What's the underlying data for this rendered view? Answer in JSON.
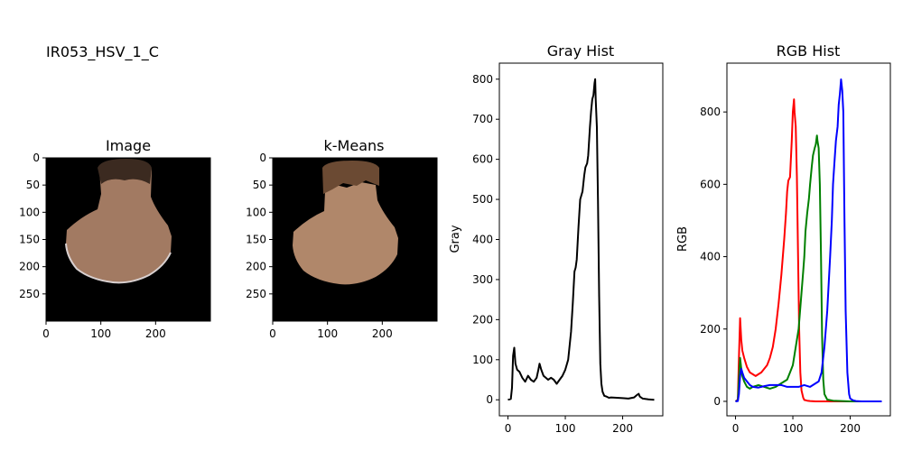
{
  "figure": {
    "suptitle": "IR053_HSV_1_C"
  },
  "colors": {
    "red": "#ff0000",
    "green": "#008000",
    "blue": "#0000ff",
    "gray": "#000000",
    "background": "#000000",
    "skin": "#b0876a",
    "hair": "#6b4a33"
  },
  "chart_data": [
    {
      "type": "image",
      "title": "Image",
      "xticks": [
        0,
        100,
        200
      ],
      "yticks": [
        0,
        50,
        100,
        150,
        200,
        250
      ],
      "xlim": [
        0,
        300
      ],
      "ylim": [
        300,
        0
      ]
    },
    {
      "type": "image",
      "title": "k-Means",
      "xticks": [
        0,
        100,
        200
      ],
      "yticks": [
        0,
        50,
        100,
        150,
        200,
        250
      ],
      "xlim": [
        0,
        300
      ],
      "ylim": [
        300,
        0
      ]
    },
    {
      "type": "line",
      "title": "Gray Hist",
      "xlabel": "",
      "ylabel": "Gray",
      "xlim": [
        -15,
        270
      ],
      "ylim": [
        -40,
        840
      ],
      "xticks": [
        0,
        100,
        200
      ],
      "yticks": [
        0,
        100,
        200,
        300,
        400,
        500,
        600,
        700,
        800
      ],
      "series": [
        {
          "color": "#000000",
          "x": [
            0,
            5,
            7,
            9,
            11,
            13,
            16,
            20,
            25,
            30,
            35,
            40,
            45,
            50,
            53,
            55,
            58,
            62,
            66,
            70,
            75,
            80,
            85,
            90,
            95,
            100,
            105,
            110,
            113,
            116,
            118,
            120,
            123,
            126,
            128,
            130,
            133,
            135,
            138,
            140,
            143,
            145,
            147,
            149,
            151,
            152,
            153,
            155,
            157,
            159,
            161,
            163,
            165,
            168,
            172,
            176,
            180,
            190,
            200,
            210,
            220,
            225,
            228,
            230,
            235,
            245,
            255
          ],
          "y": [
            0,
            2,
            30,
            110,
            130,
            90,
            75,
            70,
            55,
            45,
            60,
            50,
            45,
            55,
            75,
            90,
            75,
            60,
            55,
            50,
            55,
            50,
            40,
            50,
            60,
            75,
            100,
            170,
            240,
            320,
            330,
            350,
            430,
            500,
            510,
            520,
            560,
            580,
            590,
            610,
            680,
            720,
            750,
            760,
            790,
            800,
            750,
            680,
            500,
            260,
            90,
            40,
            20,
            10,
            8,
            5,
            6,
            5,
            4,
            3,
            6,
            12,
            15,
            8,
            3,
            1,
            0
          ]
        }
      ]
    },
    {
      "type": "line",
      "title": "RGB Hist",
      "xlabel": "",
      "ylabel": "RGB",
      "xlim": [
        -15,
        270
      ],
      "ylim": [
        -40,
        935
      ],
      "xticks": [
        0,
        100,
        200
      ],
      "yticks": [
        0,
        200,
        400,
        600,
        800
      ],
      "series": [
        {
          "color": "#ff0000",
          "x": [
            0,
            4,
            6,
            8,
            10,
            12,
            15,
            20,
            25,
            30,
            35,
            40,
            45,
            50,
            55,
            60,
            65,
            70,
            75,
            80,
            85,
            88,
            90,
            92,
            95,
            98,
            100,
            102,
            103,
            105,
            107,
            109,
            111,
            113,
            115,
            118,
            120,
            125,
            130,
            140,
            150,
            200,
            255
          ],
          "y": [
            0,
            5,
            120,
            230,
            170,
            140,
            120,
            95,
            80,
            75,
            70,
            75,
            80,
            90,
            100,
            120,
            150,
            200,
            270,
            350,
            450,
            520,
            580,
            610,
            620,
            720,
            800,
            835,
            800,
            760,
            620,
            400,
            200,
            80,
            30,
            10,
            4,
            2,
            1,
            0,
            0,
            0,
            0
          ]
        },
        {
          "color": "#008000",
          "x": [
            0,
            4,
            6,
            8,
            10,
            12,
            15,
            20,
            25,
            30,
            40,
            50,
            60,
            70,
            80,
            90,
            95,
            100,
            105,
            110,
            115,
            118,
            120,
            122,
            125,
            128,
            130,
            133,
            135,
            138,
            140,
            142,
            143,
            145,
            147,
            149,
            151,
            153,
            155,
            160,
            170,
            200,
            255
          ],
          "y": [
            0,
            3,
            60,
            120,
            90,
            70,
            55,
            40,
            35,
            40,
            45,
            40,
            35,
            40,
            50,
            60,
            80,
            100,
            150,
            200,
            300,
            360,
            400,
            470,
            520,
            560,
            600,
            650,
            680,
            700,
            710,
            735,
            720,
            700,
            600,
            400,
            180,
            60,
            20,
            5,
            2,
            0,
            0
          ]
        },
        {
          "color": "#0000ff",
          "x": [
            0,
            4,
            6,
            8,
            10,
            12,
            15,
            20,
            25,
            30,
            40,
            50,
            60,
            70,
            80,
            90,
            100,
            110,
            120,
            130,
            140,
            145,
            150,
            155,
            160,
            165,
            168,
            170,
            172,
            175,
            178,
            180,
            182,
            184,
            186,
            188,
            190,
            192,
            195,
            198,
            200,
            205,
            210,
            220,
            255
          ],
          "y": [
            0,
            1,
            20,
            70,
            90,
            80,
            65,
            55,
            45,
            40,
            38,
            42,
            45,
            45,
            45,
            40,
            40,
            40,
            45,
            40,
            50,
            55,
            80,
            150,
            250,
            400,
            500,
            600,
            650,
            720,
            760,
            820,
            850,
            890,
            860,
            800,
            500,
            250,
            80,
            20,
            8,
            3,
            1,
            0,
            0
          ]
        }
      ]
    }
  ]
}
